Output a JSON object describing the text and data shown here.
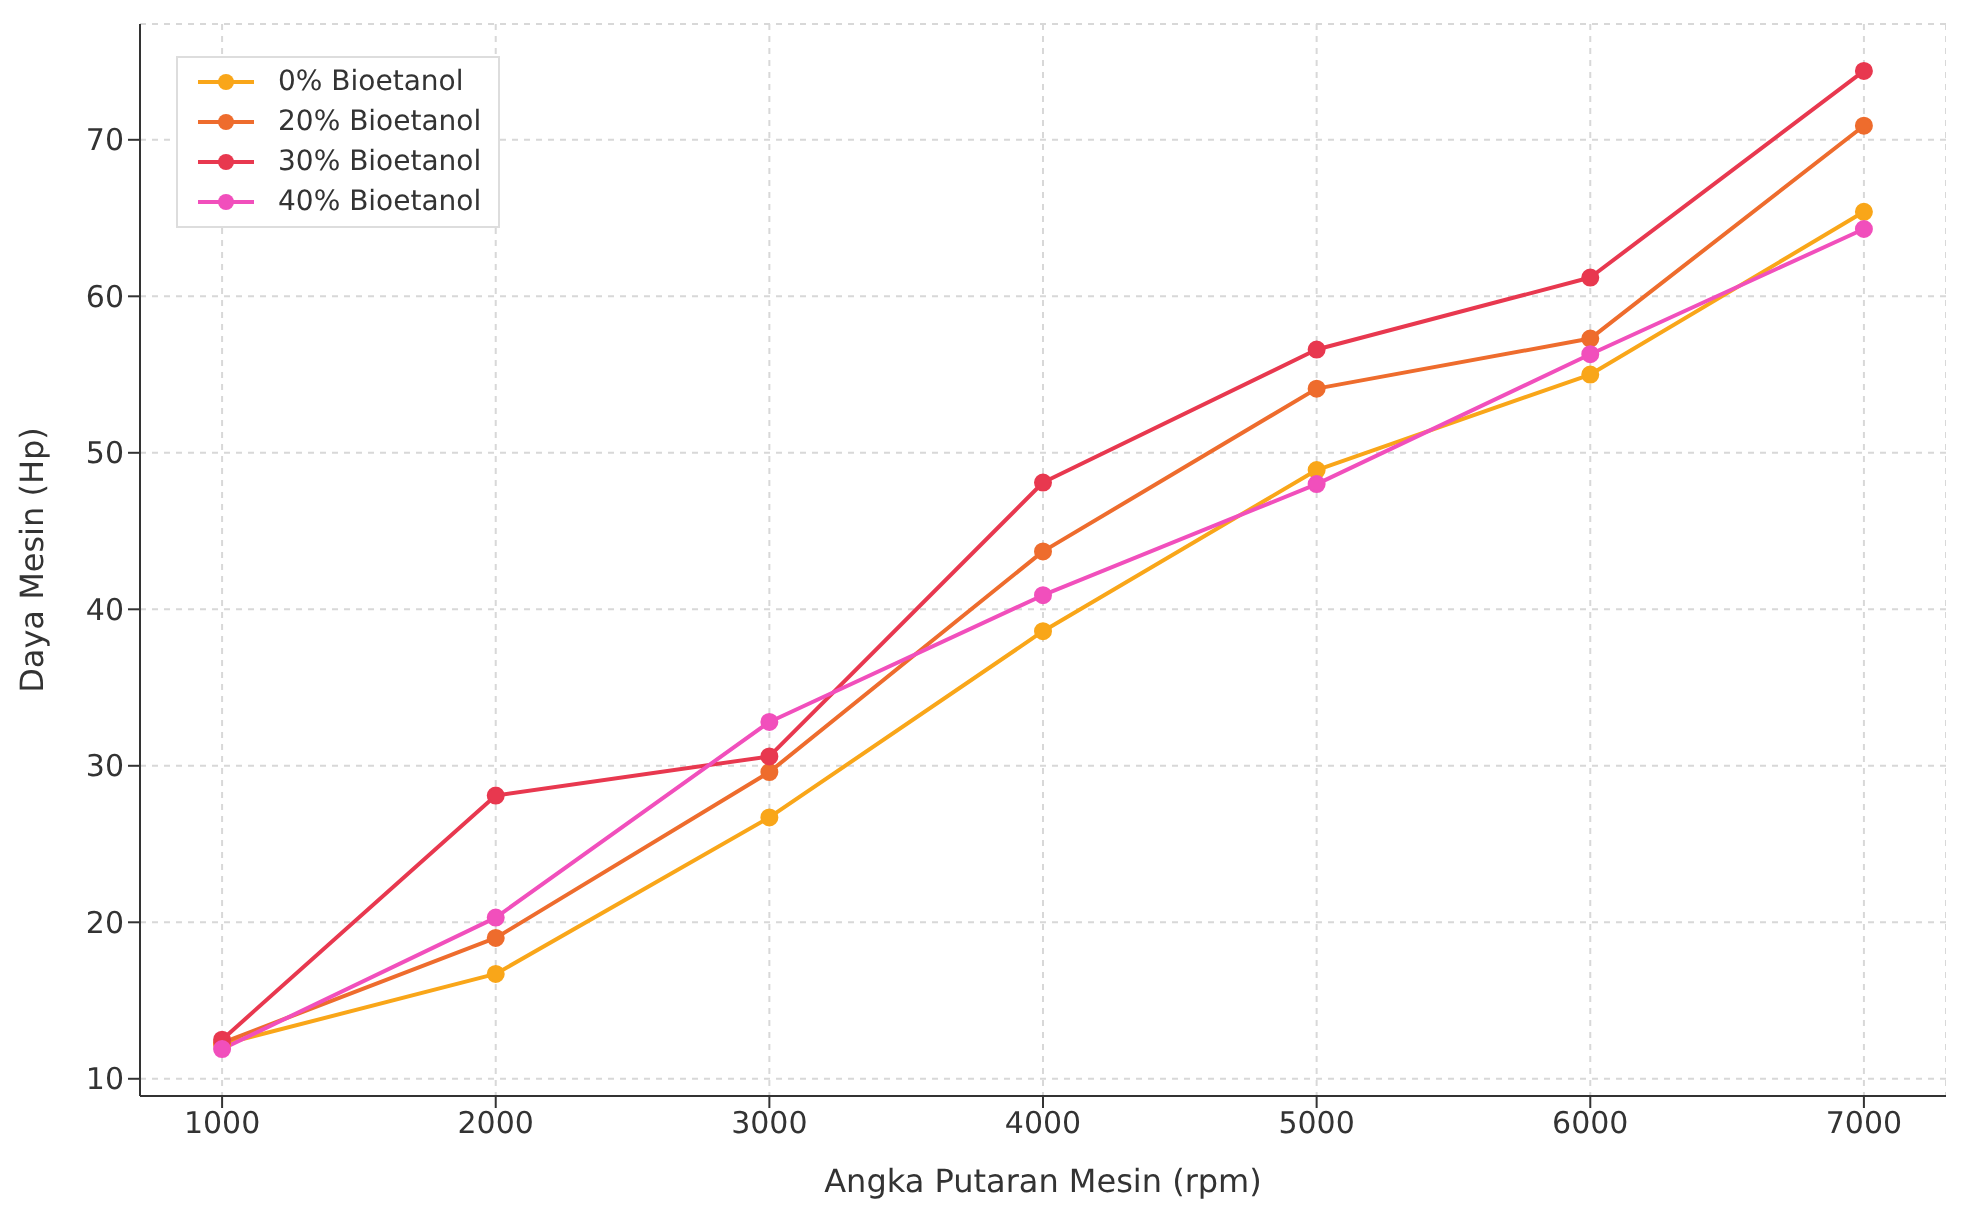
{
  "chart_data": {
    "type": "line",
    "xlabel": "Angka Putaran Mesin (rpm)",
    "ylabel": "Daya Mesin (Hp)",
    "x": [
      1000,
      2000,
      3000,
      4000,
      5000,
      6000,
      7000
    ],
    "series": [
      {
        "name": "0% Bioetanol",
        "color": "#f9a619",
        "values": [
          12.2,
          16.7,
          26.7,
          38.6,
          48.9,
          55.0,
          65.4
        ]
      },
      {
        "name": "20% Bioetanol",
        "color": "#ee6c2d",
        "values": [
          12.3,
          19.0,
          29.6,
          43.7,
          54.1,
          57.3,
          70.9
        ]
      },
      {
        "name": "30% Bioetanol",
        "color": "#e8384f",
        "values": [
          12.5,
          28.1,
          30.6,
          48.1,
          56.6,
          61.2,
          74.4
        ]
      },
      {
        "name": "40% Bioetanol",
        "color": "#f14fbc",
        "values": [
          11.9,
          20.3,
          32.8,
          40.9,
          48.0,
          56.3,
          64.3
        ]
      }
    ],
    "xlim": [
      700,
      7300
    ],
    "xticks": [
      1000,
      2000,
      3000,
      4000,
      5000,
      6000,
      7000
    ],
    "ylim": [
      8.9,
      77.4
    ],
    "yticks": [
      10,
      20,
      30,
      40,
      50,
      60,
      70
    ],
    "grid": true,
    "legend": "top left",
    "marker": "circle",
    "line_style": "solid"
  }
}
